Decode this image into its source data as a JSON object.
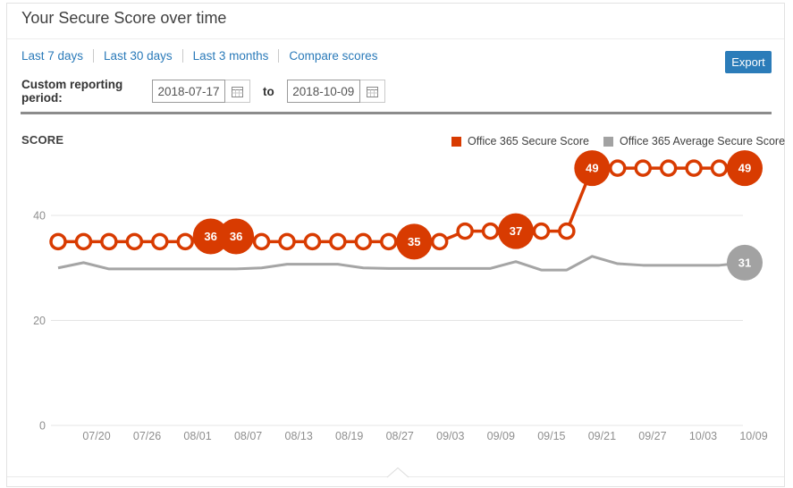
{
  "header": {
    "title": "Your Secure Score over time"
  },
  "toolbar": {
    "filters": [
      {
        "label": "Last 7 days"
      },
      {
        "label": "Last 30 days"
      },
      {
        "label": "Last 3 months"
      },
      {
        "label": "Compare scores"
      }
    ],
    "export_label": "Export"
  },
  "custom_period": {
    "label": "Custom reporting period:",
    "start_value": "2018-07-17",
    "to_label": "to",
    "end_value": "2018-10-09"
  },
  "chart_data": {
    "type": "line",
    "title": "SCORE",
    "ylabel": "SCORE",
    "ylim": [
      0,
      55
    ],
    "y_ticks": [
      0,
      20,
      40
    ],
    "grid": "horizontal",
    "legend_position": "top-right",
    "x_tick_labels": [
      "07/20",
      "07/26",
      "08/01",
      "08/07",
      "08/13",
      "08/19",
      "08/27",
      "09/03",
      "09/09",
      "09/15",
      "09/21",
      "09/27",
      "10/03",
      "10/09"
    ],
    "legend": [
      {
        "name": "Office 365 Secure Score",
        "color": "#d83b01"
      },
      {
        "name": "Office 365 Average Secure Score",
        "color": "#a2a2a2"
      }
    ],
    "series": [
      {
        "name": "Office 365 Secure Score",
        "color": "#d83b01",
        "marker": "hollow-circle",
        "points": [
          {
            "v": 35
          },
          {
            "v": 35
          },
          {
            "v": 35
          },
          {
            "v": 35
          },
          {
            "v": 35
          },
          {
            "v": 35
          },
          {
            "v": 36,
            "label": "36"
          },
          {
            "v": 36,
            "label": "36"
          },
          {
            "v": 35
          },
          {
            "v": 35
          },
          {
            "v": 35
          },
          {
            "v": 35
          },
          {
            "v": 35
          },
          {
            "v": 35
          },
          {
            "v": 35,
            "label": "35"
          },
          {
            "v": 35
          },
          {
            "v": 37
          },
          {
            "v": 37
          },
          {
            "v": 37,
            "label": "37"
          },
          {
            "v": 37
          },
          {
            "v": 37
          },
          {
            "v": 49,
            "label": "49"
          },
          {
            "v": 49
          },
          {
            "v": 49
          },
          {
            "v": 49
          },
          {
            "v": 49
          },
          {
            "v": 49
          },
          {
            "v": 49,
            "label": "49"
          }
        ]
      },
      {
        "name": "Office 365 Average Secure Score",
        "color": "#a5a5a5",
        "bubble_color": "#a2a2a2",
        "marker": "none",
        "points": [
          {
            "v": 30
          },
          {
            "v": 31
          },
          {
            "v": 29.8
          },
          {
            "v": 29.8
          },
          {
            "v": 29.8
          },
          {
            "v": 29.8
          },
          {
            "v": 29.8
          },
          {
            "v": 29.8
          },
          {
            "v": 30
          },
          {
            "v": 30.7
          },
          {
            "v": 30.7
          },
          {
            "v": 30.7
          },
          {
            "v": 30
          },
          {
            "v": 29.9
          },
          {
            "v": 29.9
          },
          {
            "v": 29.9
          },
          {
            "v": 29.9
          },
          {
            "v": 29.9
          },
          {
            "v": 31.2
          },
          {
            "v": 29.6
          },
          {
            "v": 29.6
          },
          {
            "v": 32.2
          },
          {
            "v": 30.8
          },
          {
            "v": 30.5
          },
          {
            "v": 30.5
          },
          {
            "v": 30.5
          },
          {
            "v": 30.5
          },
          {
            "v": 31,
            "label": "31"
          }
        ]
      }
    ]
  }
}
